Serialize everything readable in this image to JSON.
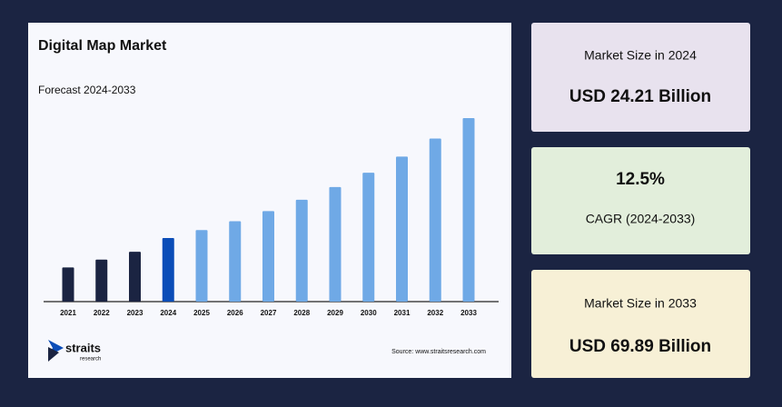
{
  "chart_data": {
    "type": "bar",
    "title": "Digital Map Market",
    "subtitle": "Forecast 2024-2033",
    "categories": [
      "2021",
      "2022",
      "2023",
      "2024",
      "2025",
      "2026",
      "2027",
      "2028",
      "2029",
      "2030",
      "2031",
      "2032",
      "2033"
    ],
    "values": [
      13,
      16,
      19,
      24.21,
      27.24,
      30.64,
      34.47,
      38.78,
      43.63,
      49.08,
      55.22,
      62.12,
      69.89
    ],
    "colors": [
      "#1b2442",
      "#1b2442",
      "#1b2442",
      "#0b4db8",
      "#6fa9e6",
      "#6fa9e6",
      "#6fa9e6",
      "#6fa9e6",
      "#6fa9e6",
      "#6fa9e6",
      "#6fa9e6",
      "#6fa9e6",
      "#6fa9e6"
    ],
    "source": "Source: www.straitsresearch.com"
  },
  "logo": {
    "name": "straits",
    "tagline": "research"
  },
  "stats": [
    {
      "label": "Market Size in 2024",
      "value": "USD 24.21 Billion"
    },
    {
      "value": "12.5%",
      "label": "CAGR (2024-2033)"
    },
    {
      "label": "Market Size in 2033",
      "value": "USD 69.89 Billion"
    }
  ]
}
